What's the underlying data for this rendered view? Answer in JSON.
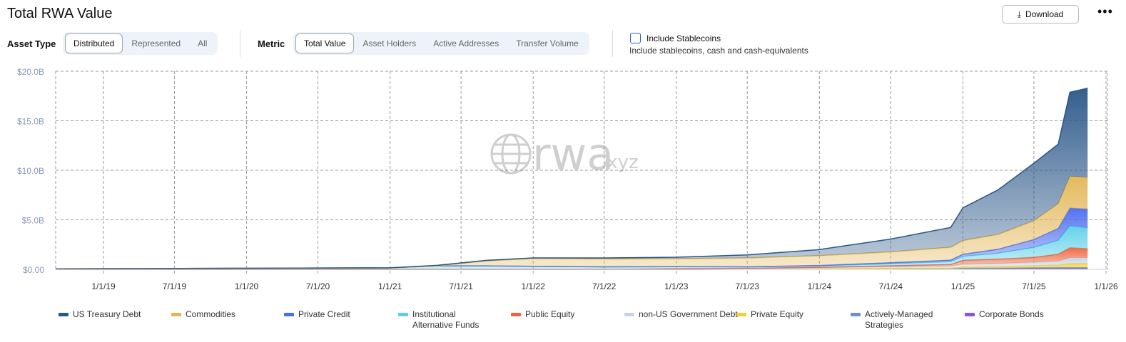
{
  "header": {
    "title": "Total RWA Value",
    "download": "Download",
    "more": "•••"
  },
  "filters": {
    "asset_type_label": "Asset Type",
    "asset_type_options": [
      "Distributed",
      "Represented",
      "All"
    ],
    "asset_type_selected": "Distributed",
    "metric_label": "Metric",
    "metric_options": [
      "Total Value",
      "Asset Holders",
      "Active Addresses",
      "Transfer Volume"
    ],
    "metric_selected": "Total Value",
    "stablecoins_label": "Include Stablecoins",
    "stablecoins_sub": "Include stablecoins, cash and cash-equivalents",
    "stablecoins_checked": false
  },
  "watermark": {
    "text": "rwa",
    "suffix": ".xyz"
  },
  "chart_data": {
    "type": "area",
    "stacked": true,
    "grid": true,
    "legend": "bottom",
    "ylim": [
      0,
      20
    ],
    "y_ticks": [
      "$0.00",
      "$5.0B",
      "$10.0B",
      "$15.0B",
      "$20.0B"
    ],
    "x_ticks": [
      "1/1/19",
      "7/1/19",
      "1/1/20",
      "7/1/20",
      "1/1/21",
      "7/1/21",
      "1/1/22",
      "7/1/22",
      "1/1/23",
      "7/1/23",
      "1/1/24",
      "7/1/24",
      "1/1/25",
      "7/1/25",
      "1/1/26"
    ],
    "x": [
      "2018-09-01",
      "2021-01-01",
      "2021-05-01",
      "2021-09-01",
      "2022-01-01",
      "2022-07-01",
      "2023-01-01",
      "2023-07-01",
      "2024-01-01",
      "2024-07-01",
      "2024-12-01",
      "2025-01-01",
      "2025-04-01",
      "2025-07-01",
      "2025-09-01",
      "2025-10-01",
      "2025-11-15"
    ],
    "series": [
      {
        "name": "Corporate Bonds",
        "color": "#9050e0",
        "values": [
          0,
          0,
          0,
          0,
          0,
          0,
          0,
          0.02,
          0.03,
          0.04,
          0.05,
          0.06,
          0.07,
          0.08,
          0.08,
          0.08,
          0.08
        ]
      },
      {
        "name": "Actively-Managed Strategies",
        "color": "#6a93c4",
        "values": [
          0,
          0,
          0,
          0,
          0,
          0,
          0,
          0,
          0,
          0.02,
          0.03,
          0.05,
          0.06,
          0.08,
          0.1,
          0.1,
          0.1
        ]
      },
      {
        "name": "Private Equity",
        "color": "#f2d232",
        "values": [
          0,
          0,
          0,
          0,
          0,
          0,
          0,
          0,
          0.03,
          0.05,
          0.05,
          0.1,
          0.15,
          0.2,
          0.25,
          0.4,
          0.4
        ]
      },
      {
        "name": "non-US Government Debt",
        "color": "#c9d2e2",
        "values": [
          0,
          0,
          0,
          0,
          0,
          0,
          0.05,
          0.05,
          0.1,
          0.15,
          0.2,
          0.3,
          0.3,
          0.35,
          0.4,
          0.6,
          0.6
        ]
      },
      {
        "name": "Public Equity",
        "color": "#f0643a",
        "values": [
          0,
          0,
          0,
          0,
          0,
          0,
          0.02,
          0.03,
          0.05,
          0.1,
          0.15,
          0.4,
          0.45,
          0.5,
          0.7,
          1.0,
          0.9
        ]
      },
      {
        "name": "Institutional Alternative Funds",
        "color": "#5ccfe8",
        "values": [
          0.05,
          0.15,
          0.35,
          0.35,
          0.3,
          0.25,
          0.2,
          0.15,
          0.15,
          0.2,
          0.3,
          0.4,
          0.6,
          1.0,
          1.4,
          2.2,
          2.1
        ]
      },
      {
        "name": "Private Credit",
        "color": "#4a6cf0",
        "values": [
          0,
          0,
          0,
          0,
          0,
          0,
          0,
          0,
          0.03,
          0.1,
          0.15,
          0.2,
          0.4,
          0.8,
          1.2,
          1.8,
          1.9
        ]
      },
      {
        "name": "Commodities",
        "color": "#e2b655",
        "values": [
          0,
          0,
          0,
          0.5,
          0.8,
          0.8,
          0.8,
          0.9,
          1.0,
          1.1,
          1.3,
          1.4,
          1.5,
          1.9,
          2.5,
          3.2,
          3.2
        ]
      },
      {
        "name": "US Treasury Debt",
        "color": "#2a5688",
        "values": [
          0,
          0,
          0.05,
          0.05,
          0.05,
          0.1,
          0.15,
          0.3,
          0.6,
          1.3,
          2.0,
          3.3,
          4.5,
          5.8,
          6.0,
          8.5,
          9.0
        ]
      }
    ]
  },
  "legend": [
    {
      "label": "US Treasury Debt",
      "color": "#2a5688"
    },
    {
      "label": "Commodities",
      "color": "#e2b655"
    },
    {
      "label": "Private Credit",
      "color": "#4a6cf0"
    },
    {
      "label": "Institutional Alternative Funds",
      "color": "#5ccfe8"
    },
    {
      "label": "Public Equity",
      "color": "#f0643a"
    },
    {
      "label": "non-US Government Debt",
      "color": "#c9d2e2"
    },
    {
      "label": "Private Equity",
      "color": "#f2d232"
    },
    {
      "label": "Actively-Managed Strategies",
      "color": "#6a93c4"
    },
    {
      "label": "Corporate Bonds",
      "color": "#9050e0"
    }
  ]
}
